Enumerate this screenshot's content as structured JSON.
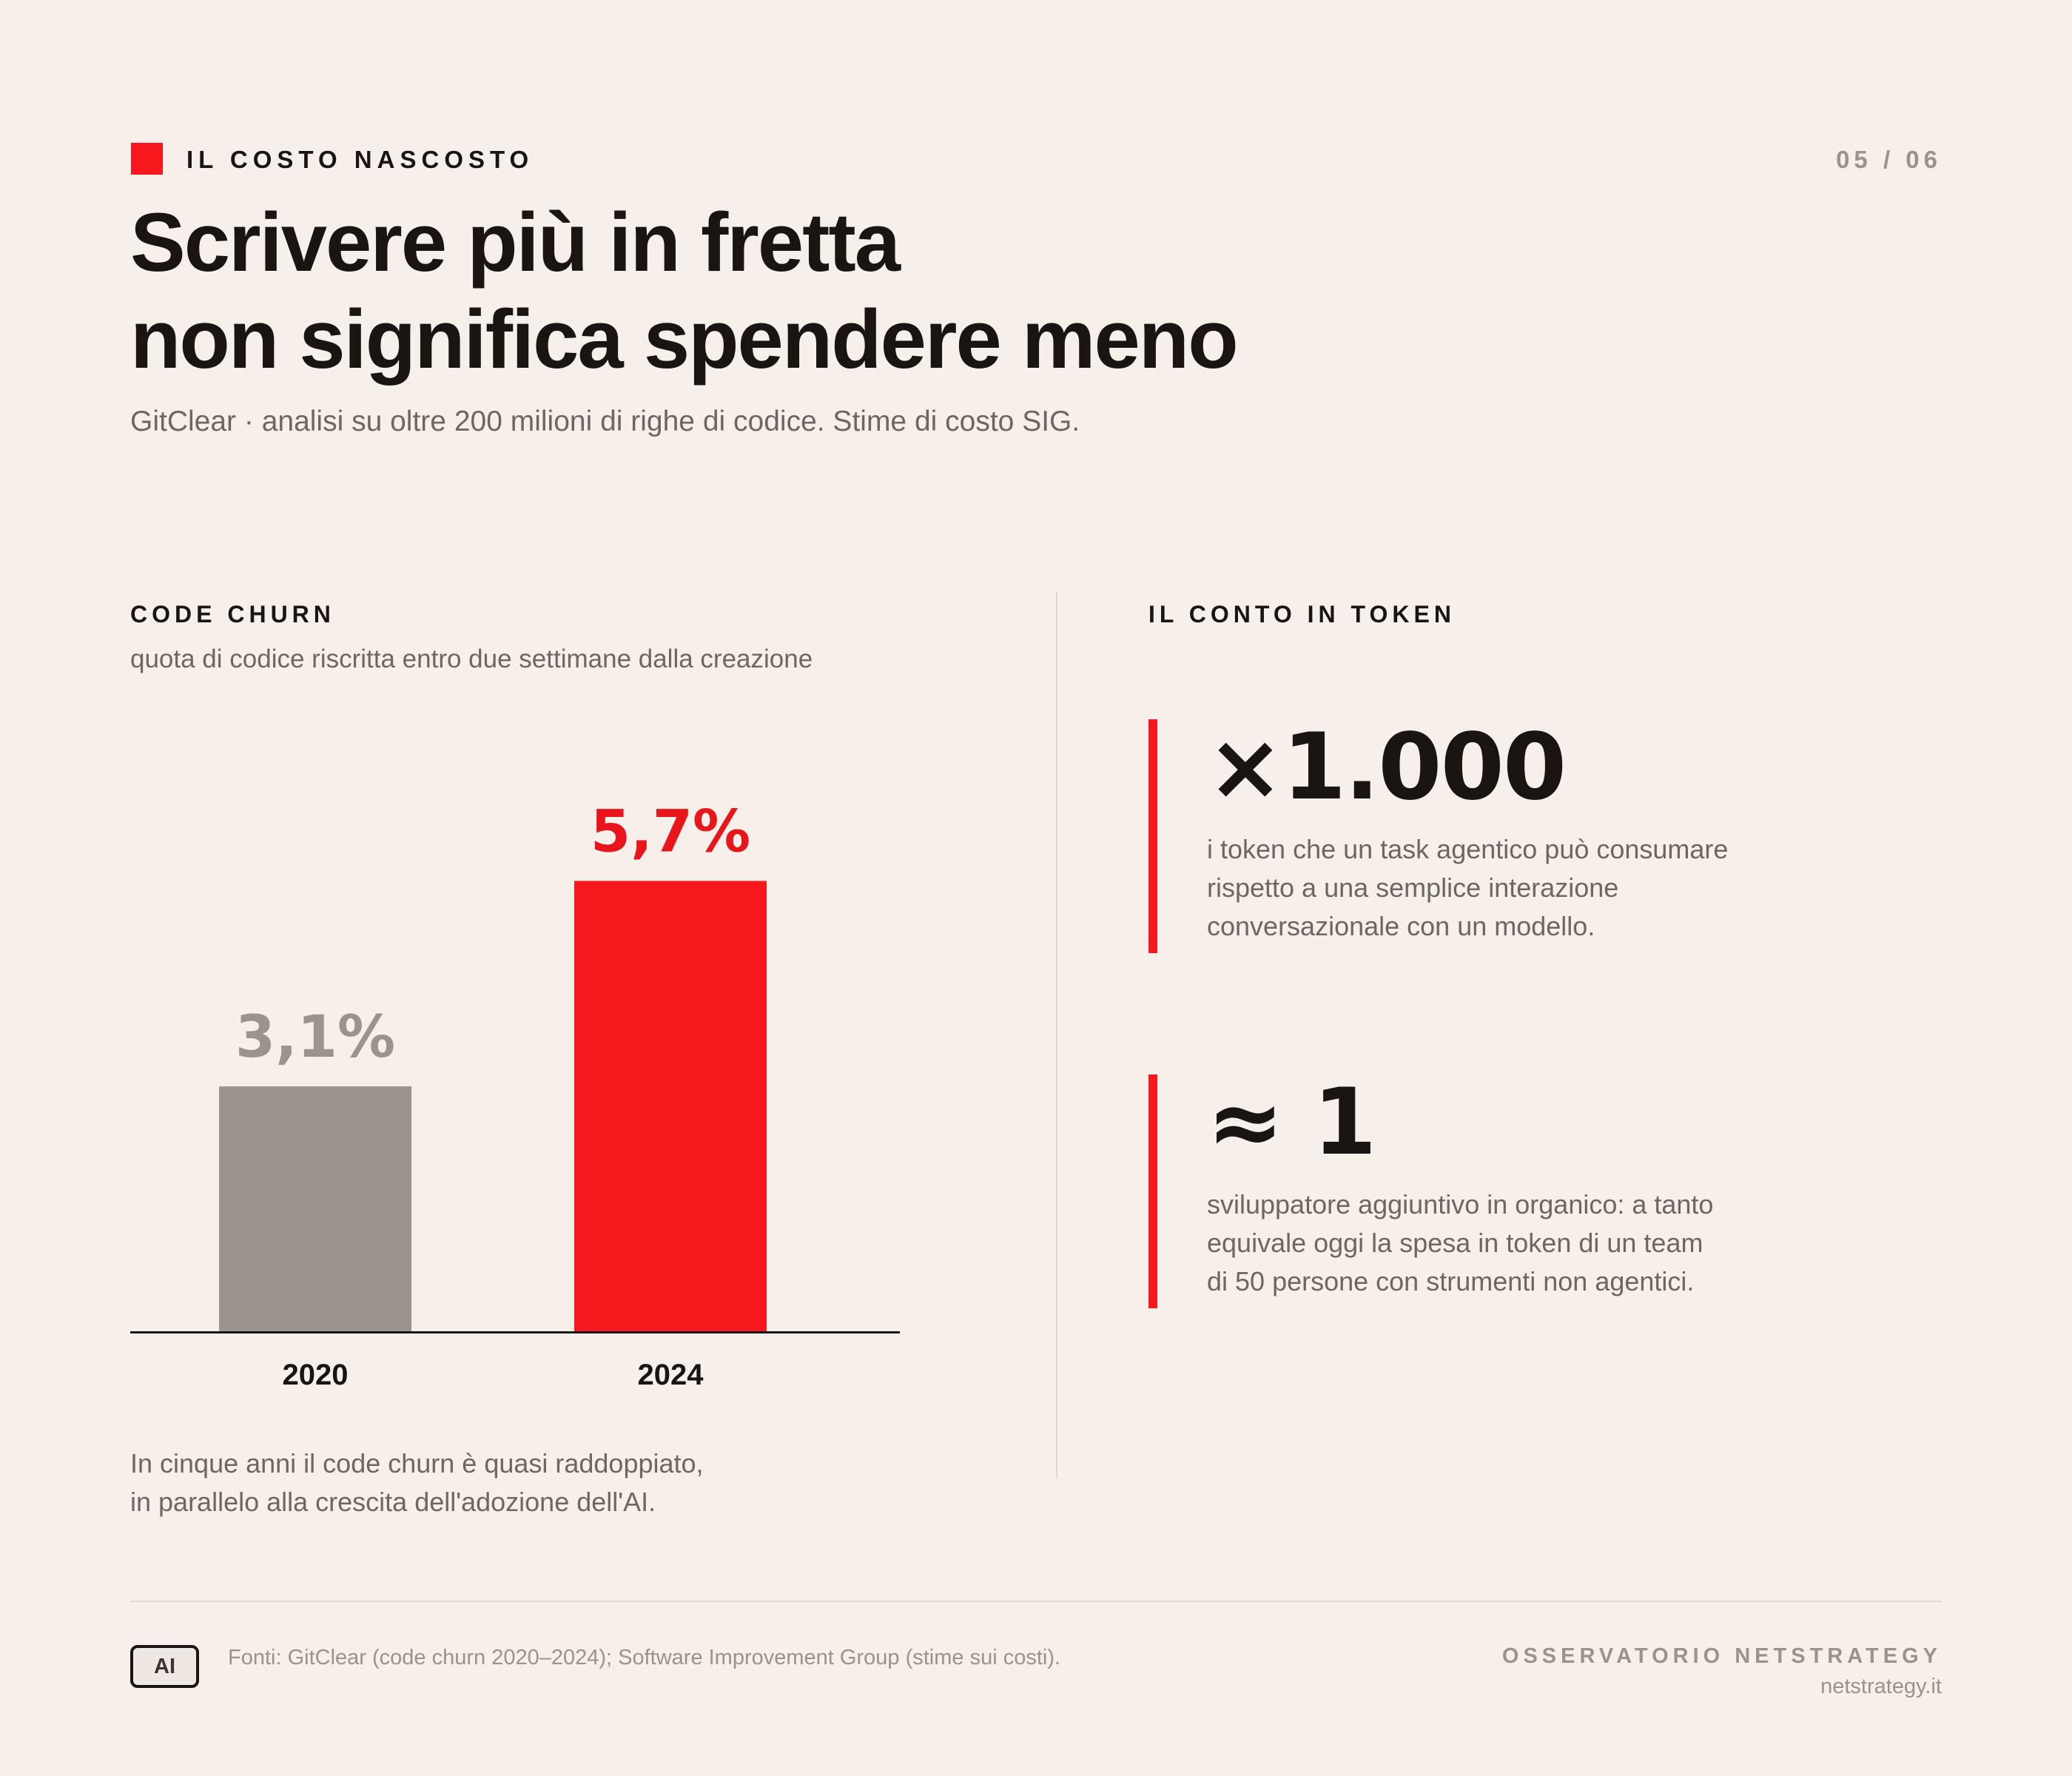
{
  "header": {
    "kicker": "IL COSTO NASCOSTO",
    "page_number": "05 / 06",
    "title_lines": [
      "Scrivere più in fretta",
      "non significa spendere meno"
    ],
    "subtitle": "GitClear · analisi su oltre 200 milioni di righe di codice. Stime di costo SIG."
  },
  "churn": {
    "label": "CODE CHURN",
    "description": "quota di codice riscritta entro due settimane dalla creazione",
    "note_lines": [
      "In cinque anni il code churn è quasi raddoppiato,",
      "in parallelo alla crescita dell'adozione dell'AI."
    ]
  },
  "chart_data": {
    "type": "bar",
    "categories": [
      "2020",
      "2024"
    ],
    "values": [
      3.1,
      5.7
    ],
    "data_labels": [
      "3,1%",
      "5,7%"
    ],
    "colors": [
      "#9b938d",
      "#f7181d"
    ],
    "label_colors": [
      "#9b938d",
      "#e8161b"
    ],
    "title": "CODE CHURN",
    "xlabel": "",
    "ylabel": "",
    "ylim": [
      0,
      7.1
    ],
    "grid": false
  },
  "tokens": {
    "label": "IL CONTO IN TOKEN",
    "stats": [
      {
        "value": "×1.000",
        "description_lines": [
          "i token che un task agentico può consumare",
          "rispetto a una semplice interazione",
          "conversazionale con un modello."
        ]
      },
      {
        "value": "≈ 1",
        "description_lines": [
          "sviluppatore aggiuntivo in organico: a tanto",
          "equivale oggi la spesa in token di un team",
          "di 50 persone con strumenti non agentici."
        ]
      }
    ]
  },
  "footer": {
    "badge": "AI",
    "sources": "Fonti: GitClear (code churn 2020–2024); Software Improvement Group (stime sui costi).",
    "brand": "OSSERVATORIO NETSTRATEGY",
    "site": "netstrategy.it"
  },
  "colors": {
    "background": "#f6efea",
    "accent": "#f7181d",
    "text": "#1a1412",
    "muted": "#6e6661",
    "gray_bar": "#9b938d"
  }
}
